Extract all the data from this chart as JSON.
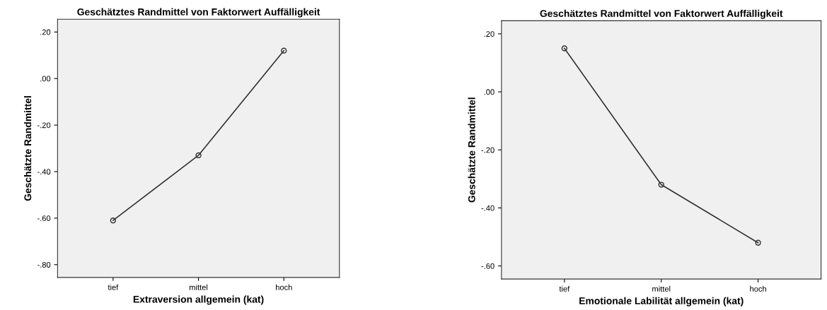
{
  "chart_data": [
    {
      "type": "line",
      "title": "Geschätztes Randmittel von Faktorwert Auffälligkeit",
      "xlabel": "Extraversion allgemein (kat)",
      "ylabel": "Geschätzte Randmittel",
      "categories": [
        "tief",
        "mittel",
        "hoch"
      ],
      "series": [
        {
          "color": "#333333",
          "values": [
            -0.61,
            -0.33,
            0.12
          ]
        }
      ],
      "ylim": [
        -0.855,
        0.255
      ],
      "yticks": [
        {
          "value": -0.8,
          "label": "-.80"
        },
        {
          "value": -0.6,
          "label": "-.60"
        },
        {
          "value": -0.4,
          "label": "-.40"
        },
        {
          "value": -0.2,
          "label": "-.20"
        },
        {
          "value": 0,
          "label": ".00"
        },
        {
          "value": 0.2,
          "label": ".20"
        }
      ],
      "marker": "circle",
      "line_style": "solid",
      "grid": false,
      "legend": false
    },
    {
      "type": "line",
      "title": "Geschätztes Randmittel von Faktorwert Auffälligkeit",
      "xlabel": "Emotionale Labilität allgemein (kat)",
      "ylabel": "Geschätzte Randmittel",
      "categories": [
        "tief",
        "mittel",
        "hoch"
      ],
      "series": [
        {
          "color": "#333333",
          "values": [
            0.15,
            -0.32,
            -0.52
          ]
        }
      ],
      "ylim": [
        -0.645,
        0.245
      ],
      "yticks": [
        {
          "value": -0.6,
          "label": "-.60"
        },
        {
          "value": -0.4,
          "label": "-.40"
        },
        {
          "value": -0.2,
          "label": "-.20"
        },
        {
          "value": 0,
          "label": ".00"
        },
        {
          "value": 0.2,
          "label": ".20"
        }
      ],
      "marker": "circle",
      "line_style": "solid",
      "grid": false,
      "legend": false
    }
  ]
}
